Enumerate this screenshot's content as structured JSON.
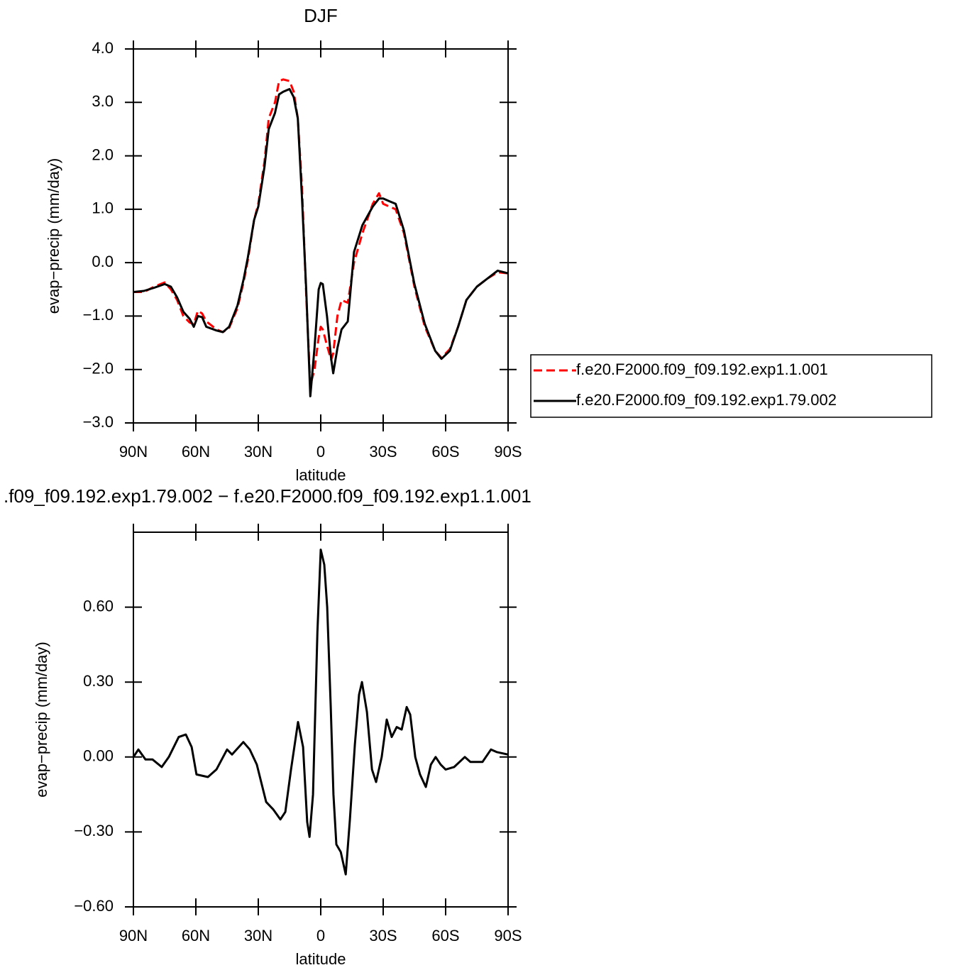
{
  "chart_data": [
    {
      "type": "line",
      "title": "DJF",
      "xlabel": "latitude",
      "ylabel": "evap−precip (mm/day)",
      "xlim": [
        90,
        -90
      ],
      "xticks": [
        {
          "value": 90,
          "label": "90N"
        },
        {
          "value": 60,
          "label": "60N"
        },
        {
          "value": 30,
          "label": "30N"
        },
        0,
        {
          "value": -30,
          "label": "30S"
        },
        {
          "value": -60,
          "label": "60S"
        },
        {
          "value": -90,
          "label": "90S"
        }
      ],
      "ylim": [
        -3,
        4
      ],
      "yticks": [
        {
          "value": -3,
          "label": "−3.0"
        },
        {
          "value": -2,
          "label": "−2.0"
        },
        {
          "value": -1,
          "label": "−1.0"
        },
        {
          "value": 0,
          "label": "0.0"
        },
        {
          "value": 1,
          "label": "1.0"
        },
        {
          "value": 2,
          "label": "2.0"
        },
        {
          "value": 3,
          "label": "3.0"
        },
        {
          "value": 4,
          "label": "4.0"
        }
      ],
      "legend": "right",
      "x": [
        90,
        85,
        80,
        75,
        72,
        69,
        66,
        63,
        61,
        59,
        57,
        55,
        50,
        47,
        44,
        40,
        37,
        35,
        32,
        30,
        27,
        25,
        22,
        20,
        18,
        15,
        13,
        11,
        9,
        7,
        5,
        3,
        1,
        0,
        -1,
        -3,
        -5,
        -6,
        -8,
        -10,
        -13,
        -16,
        -20,
        -25,
        -28,
        -30,
        -33,
        -36,
        -40,
        -45,
        -50,
        -55,
        -58,
        -62,
        -66,
        -70,
        -75,
        -80,
        -85,
        -90
      ],
      "series": [
        {
          "name": "f.e20.F2000.f09_f09.192.exp1.1.001",
          "color": "#ff0000",
          "dashed": true,
          "values": [
            -0.55,
            -0.55,
            -0.45,
            -0.37,
            -0.5,
            -0.7,
            -1.0,
            -1.12,
            -1.15,
            -0.9,
            -0.95,
            -1.1,
            -1.25,
            -1.3,
            -1.22,
            -0.85,
            -0.35,
            0.05,
            0.8,
            1.1,
            1.9,
            2.7,
            3.0,
            3.4,
            3.43,
            3.4,
            3.2,
            2.7,
            1.4,
            -0.6,
            -2.3,
            -2.0,
            -1.4,
            -1.2,
            -1.25,
            -1.55,
            -1.82,
            -1.7,
            -1.0,
            -0.7,
            -0.75,
            0.0,
            0.55,
            1.1,
            1.3,
            1.1,
            1.05,
            1.0,
            0.55,
            -0.45,
            -1.2,
            -1.65,
            -1.78,
            -1.62,
            -1.2,
            -0.7,
            -0.45,
            -0.3,
            -0.18,
            -0.2
          ]
        },
        {
          "name": "f.e20.F2000.f09_f09.192.exp1.79.002",
          "color": "#000000",
          "dashed": false,
          "values": [
            -0.55,
            -0.53,
            -0.47,
            -0.4,
            -0.45,
            -0.65,
            -0.92,
            -1.05,
            -1.2,
            -1.0,
            -1.02,
            -1.2,
            -1.27,
            -1.3,
            -1.2,
            -0.8,
            -0.3,
            0.1,
            0.8,
            1.05,
            1.8,
            2.5,
            2.8,
            3.15,
            3.2,
            3.25,
            3.1,
            2.7,
            1.2,
            -0.5,
            -2.5,
            -1.6,
            -0.5,
            -0.38,
            -0.4,
            -1.0,
            -1.8,
            -2.07,
            -1.6,
            -1.25,
            -1.1,
            0.2,
            0.7,
            1.05,
            1.2,
            1.2,
            1.15,
            1.1,
            0.6,
            -0.4,
            -1.15,
            -1.65,
            -1.8,
            -1.65,
            -1.2,
            -0.7,
            -0.45,
            -0.3,
            -0.15,
            -0.2
          ]
        }
      ]
    },
    {
      "type": "line",
      "title": ".f09_f09.192.exp1.79.002 − f.e20.F2000.f09_f09.192.exp1.1.001",
      "xlabel": "latitude",
      "ylabel": "evap−precip (mm/day)",
      "xlim": [
        90,
        -90
      ],
      "xticks": [
        {
          "value": 90,
          "label": "90N"
        },
        {
          "value": 60,
          "label": "60N"
        },
        {
          "value": 30,
          "label": "30N"
        },
        0,
        {
          "value": -30,
          "label": "30S"
        },
        {
          "value": -60,
          "label": "60S"
        },
        {
          "value": -90,
          "label": "90S"
        }
      ],
      "ylim": [
        -0.6,
        0.9
      ],
      "yticks": [
        {
          "value": -0.6,
          "label": "−0.60"
        },
        {
          "value": -0.3,
          "label": "−0.30"
        },
        {
          "value": 0,
          "label": "0.00"
        },
        {
          "value": 0.3,
          "label": "0.30"
        },
        {
          "value": 0.6,
          "label": "0.60"
        }
      ],
      "x": [
        90,
        87.6,
        84.2,
        80.8,
        76.4,
        73,
        68.2,
        64.8,
        62,
        59.7,
        54.2,
        50.1,
        45,
        42.6,
        37.2,
        34.1,
        30.7,
        26.2,
        22.8,
        19.4,
        17,
        14.3,
        10.9,
        8.5,
        6.5,
        5.4,
        3.7,
        1.6,
        0,
        -1.7,
        -3.1,
        -4.8,
        -6.1,
        -7.5,
        -9.6,
        -12,
        -14,
        -16.4,
        -18.4,
        -19.8,
        -22.2,
        -24.6,
        -26.6,
        -29.3,
        -31.7,
        -34.1,
        -36.5,
        -38.9,
        -41.3,
        -43,
        -45.4,
        -47.7,
        -50.5,
        -52.9,
        -55.2,
        -57.6,
        -60,
        -64.1,
        -69.2,
        -71.9,
        -75.4,
        -77.7,
        -81.8,
        -84.5,
        -90
      ],
      "series": [
        {
          "color": "#000000",
          "dashed": false,
          "values": [
            0.0,
            0.03,
            -0.01,
            -0.01,
            -0.04,
            0.0,
            0.08,
            0.09,
            0.04,
            -0.07,
            -0.08,
            -0.05,
            0.03,
            0.01,
            0.06,
            0.03,
            -0.03,
            -0.18,
            -0.21,
            -0.25,
            -0.22,
            -0.05,
            0.14,
            0.04,
            -0.26,
            -0.32,
            -0.15,
            0.5,
            0.83,
            0.77,
            0.6,
            0.2,
            -0.15,
            -0.35,
            -0.38,
            -0.47,
            -0.25,
            0.05,
            0.25,
            0.3,
            0.18,
            -0.05,
            -0.1,
            0.0,
            0.15,
            0.08,
            0.12,
            0.11,
            0.2,
            0.17,
            0.0,
            -0.07,
            -0.12,
            -0.03,
            0.0,
            -0.03,
            -0.05,
            -0.04,
            0.0,
            -0.02,
            -0.02,
            -0.02,
            0.03,
            0.02,
            0.01
          ]
        }
      ]
    }
  ]
}
